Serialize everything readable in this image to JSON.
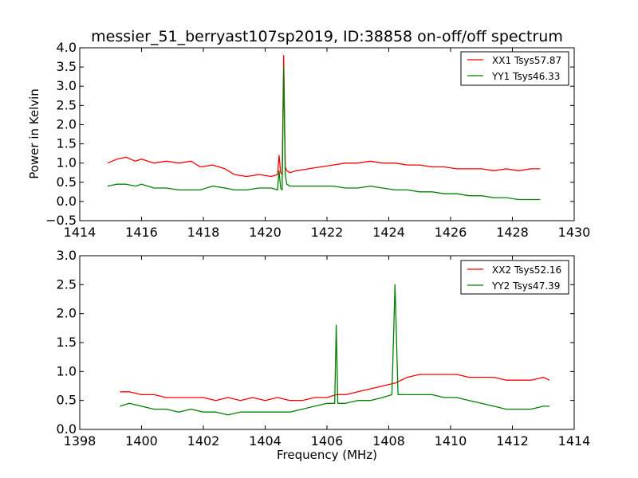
{
  "figure": {
    "title": "messier_51_berryast107sp2019, ID:38858 on-off/off spectrum"
  },
  "chart_data": [
    {
      "type": "line",
      "ylabel": "Power in Kelvin",
      "xlabel": "",
      "xlim": [
        1414,
        1430
      ],
      "ylim": [
        -0.5,
        4.0
      ],
      "xticks": [
        1414,
        1416,
        1418,
        1420,
        1422,
        1424,
        1426,
        1428,
        1430
      ],
      "yticks": [
        -0.5,
        0.0,
        0.5,
        1.0,
        1.5,
        2.0,
        2.5,
        3.0,
        3.5,
        4.0
      ],
      "xtick_labels": [
        "1414",
        "1416",
        "1418",
        "1420",
        "1422",
        "1424",
        "1426",
        "1428",
        "1430"
      ],
      "ytick_labels": [
        "−0.5",
        "0.0",
        "0.5",
        "1.0",
        "1.5",
        "2.0",
        "2.5",
        "3.0",
        "3.5",
        "4.0"
      ],
      "legend": "top-right",
      "series": [
        {
          "name": "XX1 Tsys57.87",
          "color": "#ff0000",
          "x": [
            1414.9,
            1415.2,
            1415.5,
            1415.8,
            1416.0,
            1416.4,
            1416.8,
            1417.2,
            1417.6,
            1417.9,
            1418.3,
            1418.7,
            1419.0,
            1419.4,
            1419.8,
            1420.2,
            1420.4,
            1420.45,
            1420.5,
            1420.55,
            1420.6,
            1420.65,
            1420.7,
            1420.8,
            1421.0,
            1421.4,
            1421.8,
            1422.2,
            1422.6,
            1423.0,
            1423.4,
            1423.8,
            1424.2,
            1424.6,
            1425.0,
            1425.4,
            1425.8,
            1426.2,
            1426.6,
            1427.0,
            1427.4,
            1427.8,
            1428.2,
            1428.6,
            1428.9
          ],
          "y": [
            1.0,
            1.1,
            1.15,
            1.05,
            1.1,
            1.0,
            1.05,
            1.0,
            1.05,
            0.9,
            0.95,
            0.85,
            0.7,
            0.65,
            0.7,
            0.65,
            0.7,
            1.2,
            0.75,
            0.7,
            3.8,
            0.9,
            0.8,
            0.75,
            0.8,
            0.85,
            0.9,
            0.95,
            1.0,
            1.0,
            1.05,
            1.0,
            1.0,
            0.95,
            0.95,
            0.9,
            0.9,
            0.85,
            0.85,
            0.85,
            0.8,
            0.85,
            0.8,
            0.85,
            0.85
          ]
        },
        {
          "name": "YY1 Tsys46.33",
          "color": "#008000",
          "x": [
            1414.9,
            1415.2,
            1415.5,
            1415.8,
            1416.0,
            1416.4,
            1416.8,
            1417.2,
            1417.6,
            1417.9,
            1418.3,
            1418.7,
            1419.0,
            1419.4,
            1419.8,
            1420.2,
            1420.4,
            1420.45,
            1420.5,
            1420.55,
            1420.6,
            1420.65,
            1420.7,
            1420.8,
            1421.0,
            1421.4,
            1421.8,
            1422.2,
            1422.6,
            1423.0,
            1423.4,
            1423.8,
            1424.2,
            1424.6,
            1425.0,
            1425.4,
            1425.8,
            1426.2,
            1426.6,
            1427.0,
            1427.4,
            1427.8,
            1428.2,
            1428.6,
            1428.9
          ],
          "y": [
            0.4,
            0.45,
            0.45,
            0.4,
            0.45,
            0.35,
            0.35,
            0.3,
            0.3,
            0.3,
            0.4,
            0.35,
            0.3,
            0.3,
            0.35,
            0.35,
            0.3,
            0.8,
            0.35,
            0.3,
            3.5,
            0.7,
            0.45,
            0.4,
            0.4,
            0.4,
            0.4,
            0.4,
            0.35,
            0.35,
            0.4,
            0.35,
            0.3,
            0.3,
            0.25,
            0.25,
            0.2,
            0.2,
            0.15,
            0.15,
            0.1,
            0.1,
            0.05,
            0.05,
            0.05
          ]
        }
      ]
    },
    {
      "type": "line",
      "ylabel": "",
      "xlabel": "Frequency (MHz)",
      "xlim": [
        1398,
        1414
      ],
      "ylim": [
        0.0,
        3.0
      ],
      "xticks": [
        1398,
        1400,
        1402,
        1404,
        1406,
        1408,
        1410,
        1412,
        1414
      ],
      "yticks": [
        0.0,
        0.5,
        1.0,
        1.5,
        2.0,
        2.5,
        3.0
      ],
      "xtick_labels": [
        "1398",
        "1400",
        "1402",
        "1404",
        "1406",
        "1408",
        "1410",
        "1412",
        "1414"
      ],
      "ytick_labels": [
        "0.0",
        "0.5",
        "1.0",
        "1.5",
        "2.0",
        "2.5",
        "3.0"
      ],
      "legend": "top-right",
      "series": [
        {
          "name": "XX2 Tsys52.16",
          "color": "#ff0000",
          "x": [
            1399.3,
            1399.6,
            1400.0,
            1400.4,
            1400.8,
            1401.2,
            1401.6,
            1402.0,
            1402.4,
            1402.8,
            1403.2,
            1403.6,
            1404.0,
            1404.4,
            1404.8,
            1405.2,
            1405.6,
            1406.0,
            1406.3,
            1406.6,
            1407.0,
            1407.4,
            1407.8,
            1408.2,
            1408.6,
            1409.0,
            1409.4,
            1409.8,
            1410.2,
            1410.6,
            1411.0,
            1411.4,
            1411.8,
            1412.2,
            1412.6,
            1413.0,
            1413.2
          ],
          "y": [
            0.65,
            0.65,
            0.6,
            0.6,
            0.55,
            0.55,
            0.55,
            0.55,
            0.5,
            0.55,
            0.5,
            0.55,
            0.5,
            0.55,
            0.5,
            0.5,
            0.55,
            0.55,
            0.6,
            0.6,
            0.65,
            0.7,
            0.75,
            0.8,
            0.9,
            0.95,
            0.95,
            0.95,
            0.95,
            0.9,
            0.9,
            0.9,
            0.85,
            0.85,
            0.85,
            0.9,
            0.85
          ]
        },
        {
          "name": "YY2 Tsys47.39",
          "color": "#008000",
          "x": [
            1399.3,
            1399.6,
            1400.0,
            1400.4,
            1400.8,
            1401.2,
            1401.6,
            1402.0,
            1402.4,
            1402.8,
            1403.2,
            1403.6,
            1404.0,
            1404.4,
            1404.8,
            1405.2,
            1405.6,
            1406.0,
            1406.25,
            1406.3,
            1406.35,
            1406.6,
            1407.0,
            1407.4,
            1407.8,
            1408.1,
            1408.2,
            1408.3,
            1408.6,
            1409.0,
            1409.4,
            1409.8,
            1410.2,
            1410.6,
            1411.0,
            1411.4,
            1411.8,
            1412.2,
            1412.6,
            1413.0,
            1413.2
          ],
          "y": [
            0.4,
            0.45,
            0.4,
            0.35,
            0.35,
            0.3,
            0.35,
            0.3,
            0.3,
            0.25,
            0.3,
            0.3,
            0.3,
            0.3,
            0.3,
            0.35,
            0.4,
            0.45,
            0.45,
            1.8,
            0.45,
            0.45,
            0.5,
            0.5,
            0.55,
            0.6,
            2.5,
            0.6,
            0.6,
            0.6,
            0.6,
            0.55,
            0.55,
            0.5,
            0.45,
            0.4,
            0.35,
            0.35,
            0.35,
            0.4,
            0.4
          ]
        }
      ]
    }
  ]
}
